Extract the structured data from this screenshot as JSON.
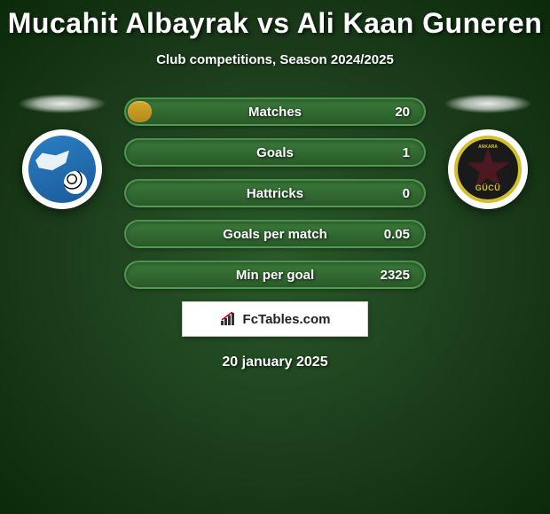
{
  "title": "Mucahit Albayrak vs Ali Kaan Guneren",
  "subtitle": "Club competitions, Season 2024/2025",
  "date": "20 january 2025",
  "logo_text": "FcTables.com",
  "colors": {
    "background_center": "#2a5a2a",
    "background_edge": "#0a2a0a",
    "bar_bg_top": "#3a7a3a",
    "bar_bg_bottom": "#2a5a2a",
    "bar_border": "#64b464",
    "fill_top": "#d4a82a",
    "fill_bottom": "#b4881a",
    "text": "#ffffff"
  },
  "team_left": {
    "name": "erzurumspor",
    "badge_bg": "#2a7fc4"
  },
  "team_right": {
    "name": "ankaragucu",
    "badge_border": "#d4c02a",
    "badge_bg": "#1a1a1a",
    "label_top": "ANKARA",
    "label_bottom": "GÜCÜ"
  },
  "stats": [
    {
      "label": "Matches",
      "right_value": "20",
      "fill_pct": 8
    },
    {
      "label": "Goals",
      "right_value": "1",
      "fill_pct": 0
    },
    {
      "label": "Hattricks",
      "right_value": "0",
      "fill_pct": 0
    },
    {
      "label": "Goals per match",
      "right_value": "0.05",
      "fill_pct": 0
    },
    {
      "label": "Min per goal",
      "right_value": "2325",
      "fill_pct": 0
    }
  ]
}
